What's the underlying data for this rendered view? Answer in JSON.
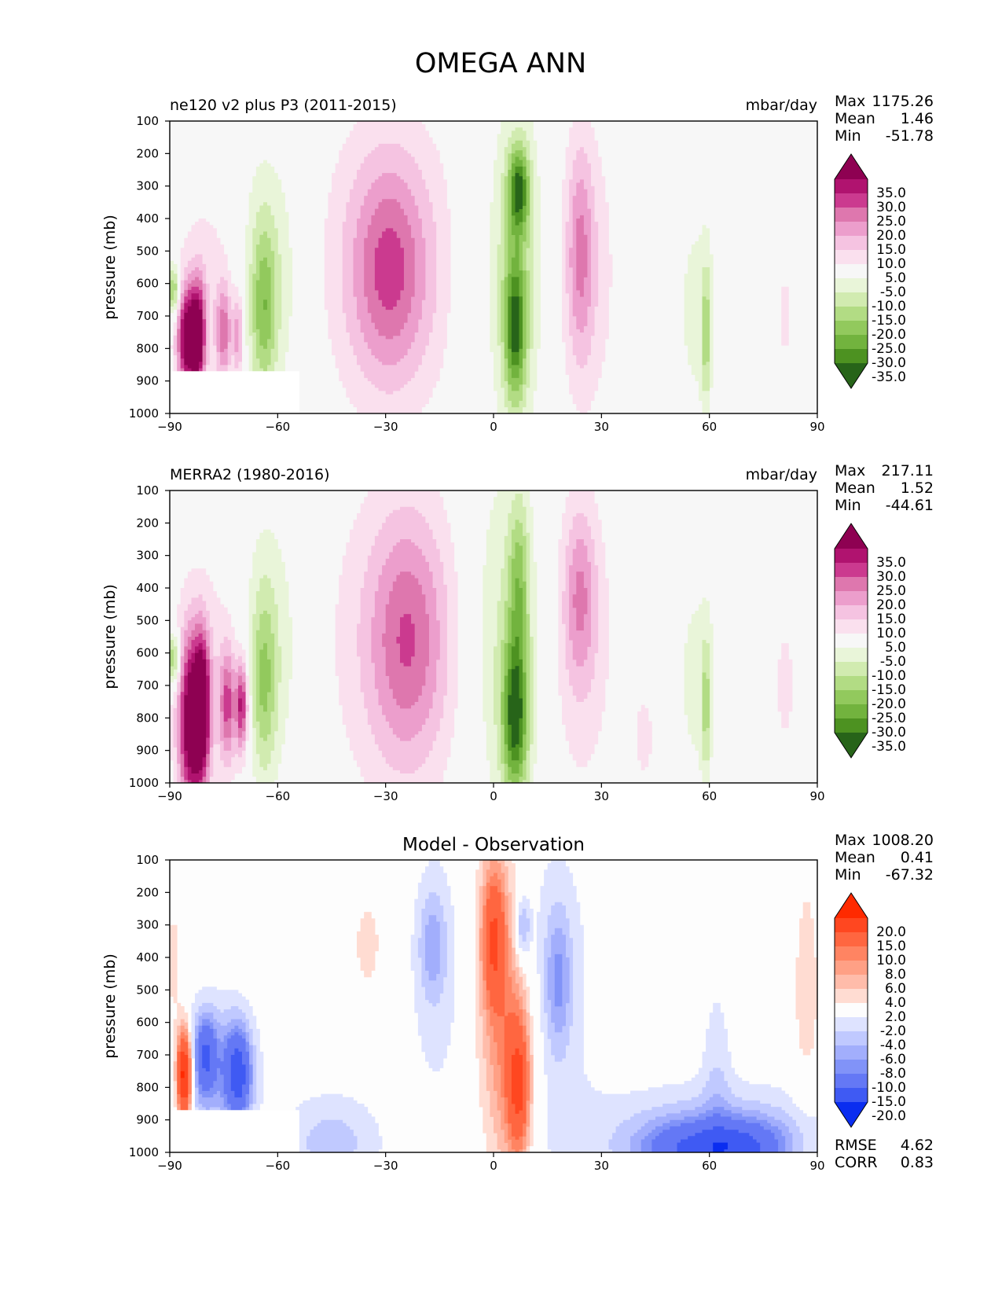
{
  "figure": {
    "title": "OMEGA ANN"
  },
  "chart_data": [
    {
      "type": "heatmap",
      "title": "ne120 v2 plus P3 (2011-2015)",
      "units": "mbar/day",
      "xlabel": "",
      "ylabel": "pressure (mb)",
      "xlim": [
        -90,
        90
      ],
      "ylim": [
        1000,
        100
      ],
      "xticks": [
        -90,
        -60,
        -30,
        0,
        30,
        60,
        90
      ],
      "xtick_labels": [
        "−90",
        "−60",
        "−30",
        "0",
        "30",
        "60",
        "90"
      ],
      "yticks": [
        100,
        200,
        300,
        400,
        500,
        600,
        700,
        800,
        900,
        1000
      ],
      "stats": [
        {
          "label": "Max",
          "value": "1175.26"
        },
        {
          "label": "Mean",
          "value": "1.46"
        },
        {
          "label": "Min",
          "value": "-51.78"
        }
      ],
      "colorbar": {
        "labels": [
          "35.0",
          "30.0",
          "25.0",
          "20.0",
          "15.0",
          "10.0",
          "5.0",
          "-5.0",
          "-10.0",
          "-15.0",
          "-20.0",
          "-25.0",
          "-30.0",
          "-35.0"
        ],
        "colors": [
          "#8e0152",
          "#b0136f",
          "#cb3a8f",
          "#de77ae",
          "#ec9ecc",
          "#f5c3e1",
          "#fae0ee",
          "#f7f7f7",
          "#e9f5d9",
          "#d1ebb0",
          "#b2dc84",
          "#92c95d",
          "#72b33e",
          "#4d9221",
          "#276419"
        ]
      },
      "blobs": [
        {
          "lat": -29,
          "p": 540,
          "rlat": 14,
          "rp": 330,
          "v": 12
        },
        {
          "lat": -29,
          "p": 560,
          "rlat": 7,
          "rp": 230,
          "v": 16
        },
        {
          "lat": -63,
          "p": 580,
          "rlat": 7,
          "rp": 290,
          "v": -11
        },
        {
          "lat": -64,
          "p": 680,
          "rlat": 2.5,
          "rp": 180,
          "v": -17
        },
        {
          "lat": 6,
          "p": 560,
          "rlat": 5,
          "rp": 360,
          "v": -16
        },
        {
          "lat": 7,
          "p": 310,
          "rlat": 2,
          "rp": 90,
          "v": -28
        },
        {
          "lat": 6,
          "p": 740,
          "rlat": 2,
          "rp": 150,
          "v": -26
        },
        {
          "lat": -7,
          "p": 600,
          "rlat": 3,
          "rp": 300,
          "v": -7
        },
        {
          "lat": 26,
          "p": 560,
          "rlat": 6,
          "rp": 340,
          "v": 9
        },
        {
          "lat": 24,
          "p": 500,
          "rlat": 2.5,
          "rp": 230,
          "v": 14
        },
        {
          "lat": 57,
          "p": 680,
          "rlat": 5,
          "rp": 260,
          "v": -7
        },
        {
          "lat": 59,
          "p": 760,
          "rlat": 0.8,
          "rp": 150,
          "v": -14
        },
        {
          "lat": 81,
          "p": 700,
          "rlat": 2,
          "rp": 160,
          "v": 6
        },
        {
          "lat": -78,
          "p": 620,
          "rlat": 8,
          "rp": 250,
          "v": 8
        },
        {
          "lat": -85,
          "p": 770,
          "rlat": 2,
          "rp": 110,
          "v": 40
        },
        {
          "lat": -82,
          "p": 760,
          "rlat": 1.4,
          "rp": 120,
          "v": 30
        },
        {
          "lat": -75,
          "p": 750,
          "rlat": 1.5,
          "rp": 100,
          "v": 20
        },
        {
          "lat": -71,
          "p": 760,
          "rlat": 1.0,
          "rp": 90,
          "v": 18
        },
        {
          "lat": -89,
          "p": 620,
          "rlat": 1.2,
          "rp": 60,
          "v": -24
        }
      ],
      "mask": {
        "lat_max": -54,
        "p_min": 870
      }
    },
    {
      "type": "heatmap",
      "title": "MERRA2 (1980-2016)",
      "units": "mbar/day",
      "xlabel": "",
      "ylabel": "pressure (mb)",
      "xlim": [
        -90,
        90
      ],
      "ylim": [
        1000,
        100
      ],
      "xticks": [
        -90,
        -60,
        -30,
        0,
        30,
        60,
        90
      ],
      "xtick_labels": [
        "−90",
        "−60",
        "−30",
        "0",
        "30",
        "60",
        "90"
      ],
      "yticks": [
        100,
        200,
        300,
        400,
        500,
        600,
        700,
        800,
        900,
        1000
      ],
      "stats": [
        {
          "label": "Max",
          "value": "217.11"
        },
        {
          "label": "Mean",
          "value": "1.52"
        },
        {
          "label": "Min",
          "value": "-44.61"
        }
      ],
      "colorbar": {
        "labels": [
          "35.0",
          "30.0",
          "25.0",
          "20.0",
          "15.0",
          "10.0",
          "5.0",
          "-5.0",
          "-10.0",
          "-15.0",
          "-20.0",
          "-25.0",
          "-30.0",
          "-35.0"
        ],
        "colors": [
          "#8e0152",
          "#b0136f",
          "#cb3a8f",
          "#de77ae",
          "#ec9ecc",
          "#f5c3e1",
          "#fae0ee",
          "#f7f7f7",
          "#e9f5d9",
          "#d1ebb0",
          "#b2dc84",
          "#92c95d",
          "#72b33e",
          "#4d9221",
          "#276419"
        ]
      },
      "blobs": [
        {
          "lat": -25,
          "p": 560,
          "rlat": 15,
          "rp": 360,
          "v": 11
        },
        {
          "lat": -24,
          "p": 560,
          "rlat": 7,
          "rp": 260,
          "v": 15
        },
        {
          "lat": -63,
          "p": 590,
          "rlat": 7,
          "rp": 310,
          "v": -11
        },
        {
          "lat": -64,
          "p": 700,
          "rlat": 2.5,
          "rp": 200,
          "v": -16
        },
        {
          "lat": 3,
          "p": 560,
          "rlat": 8,
          "rp": 400,
          "v": -12
        },
        {
          "lat": 6,
          "p": 800,
          "rlat": 2.5,
          "rp": 170,
          "v": -32
        },
        {
          "lat": 7,
          "p": 380,
          "rlat": 2,
          "rp": 180,
          "v": -16
        },
        {
          "lat": 24,
          "p": 560,
          "rlat": 7,
          "rp": 360,
          "v": 9
        },
        {
          "lat": 24,
          "p": 420,
          "rlat": 3,
          "rp": 180,
          "v": 14
        },
        {
          "lat": 57,
          "p": 680,
          "rlat": 5,
          "rp": 260,
          "v": -7
        },
        {
          "lat": 59,
          "p": 770,
          "rlat": 0.8,
          "rp": 150,
          "v": -13
        },
        {
          "lat": 81,
          "p": 700,
          "rlat": 3,
          "rp": 230,
          "v": 6
        },
        {
          "lat": 42,
          "p": 860,
          "rlat": 3,
          "rp": 150,
          "v": 6
        },
        {
          "lat": -76,
          "p": 680,
          "rlat": 9,
          "rp": 290,
          "v": 9
        },
        {
          "lat": -84,
          "p": 820,
          "rlat": 2.5,
          "rp": 190,
          "v": 40
        },
        {
          "lat": -81,
          "p": 760,
          "rlat": 1.5,
          "rp": 150,
          "v": 32
        },
        {
          "lat": -74,
          "p": 760,
          "rlat": 1.5,
          "rp": 120,
          "v": 22
        },
        {
          "lat": -70,
          "p": 760,
          "rlat": 1.2,
          "rp": 100,
          "v": 30
        },
        {
          "lat": -89,
          "p": 620,
          "rlat": 1.2,
          "rp": 60,
          "v": -24
        }
      ]
    },
    {
      "type": "heatmap",
      "title": "Model - Observation",
      "units": "",
      "xlabel": "",
      "ylabel": "pressure (mb)",
      "xlim": [
        -90,
        90
      ],
      "ylim": [
        1000,
        100
      ],
      "xticks": [
        -90,
        -60,
        -30,
        0,
        30,
        60,
        90
      ],
      "xtick_labels": [
        "−90",
        "−60",
        "−30",
        "0",
        "30",
        "60",
        "90"
      ],
      "yticks": [
        100,
        200,
        300,
        400,
        500,
        600,
        700,
        800,
        900,
        1000
      ],
      "stats": [
        {
          "label": "Max",
          "value": "1008.20"
        },
        {
          "label": "Mean",
          "value": "0.41"
        },
        {
          "label": "Min",
          "value": "-67.32"
        }
      ],
      "metrics": [
        {
          "label": "RMSE",
          "value": "4.62"
        },
        {
          "label": "CORR",
          "value": "0.83"
        }
      ],
      "colorbar": {
        "labels": [
          "20.0",
          "15.0",
          "10.0",
          "8.0",
          "6.0",
          "4.0",
          "2.0",
          "-2.0",
          "-4.0",
          "-6.0",
          "-8.0",
          "-10.0",
          "-15.0",
          "-20.0"
        ],
        "colors": [
          "#ff2a00",
          "#ff4720",
          "#ff6640",
          "#ff8462",
          "#ffa085",
          "#ffbcaa",
          "#ffdcd2",
          "#fdfdfd",
          "#dee3ff",
          "#c0c9ff",
          "#a2aefc",
          "#8193f8",
          "#6478f5",
          "#3f5af3",
          "#0a2df0"
        ]
      },
      "blobs": [
        {
          "lat": 1,
          "p": 450,
          "rlat": 4.5,
          "rp": 380,
          "v": 6
        },
        {
          "lat": 0,
          "p": 340,
          "rlat": 2.2,
          "rp": 140,
          "v": 11
        },
        {
          "lat": 6,
          "p": 740,
          "rlat": 4,
          "rp": 250,
          "v": 7
        },
        {
          "lat": 7,
          "p": 800,
          "rlat": 2,
          "rp": 140,
          "v": 11
        },
        {
          "lat": -35,
          "p": 360,
          "rlat": 3,
          "rp": 110,
          "v": 3
        },
        {
          "lat": -16,
          "p": 450,
          "rlat": 6,
          "rp": 330,
          "v": -3
        },
        {
          "lat": -17,
          "p": 360,
          "rlat": 2.5,
          "rp": 110,
          "v": -5
        },
        {
          "lat": 17,
          "p": 480,
          "rlat": 9,
          "rp": 380,
          "v": -3
        },
        {
          "lat": 8,
          "p": 310,
          "rlat": 1.5,
          "rp": 70,
          "v": -7
        },
        {
          "lat": 18,
          "p": 470,
          "rlat": 2.5,
          "rp": 150,
          "v": -6
        },
        {
          "lat": 87,
          "p": 500,
          "rlat": 3,
          "rp": 300,
          "v": 3
        },
        {
          "lat": -89,
          "p": 460,
          "rlat": 2,
          "rp": 190,
          "v": 3
        },
        {
          "lat": -78,
          "p": 740,
          "rlat": 8,
          "rp": 150,
          "v": -7
        },
        {
          "lat": -71,
          "p": 760,
          "rlat": 2.5,
          "rp": 100,
          "v": -14
        },
        {
          "lat": -80,
          "p": 700,
          "rlat": 2,
          "rp": 80,
          "v": -10
        },
        {
          "lat": -86,
          "p": 760,
          "rlat": 1.5,
          "rp": 100,
          "v": 25
        },
        {
          "lat": -45,
          "p": 970,
          "rlat": 10,
          "rp": 110,
          "v": -5
        },
        {
          "lat": 62,
          "p": 960,
          "rlat": 25,
          "rp": 120,
          "v": -6
        },
        {
          "lat": 55,
          "p": 990,
          "rlat": 10,
          "rp": 60,
          "v": -10
        },
        {
          "lat": 70,
          "p": 985,
          "rlat": 8,
          "rp": 60,
          "v": -9
        },
        {
          "lat": 62,
          "p": 720,
          "rlat": 3,
          "rp": 200,
          "v": -3
        }
      ],
      "mask": {
        "lat_max": -54,
        "p_min": 870
      }
    }
  ]
}
